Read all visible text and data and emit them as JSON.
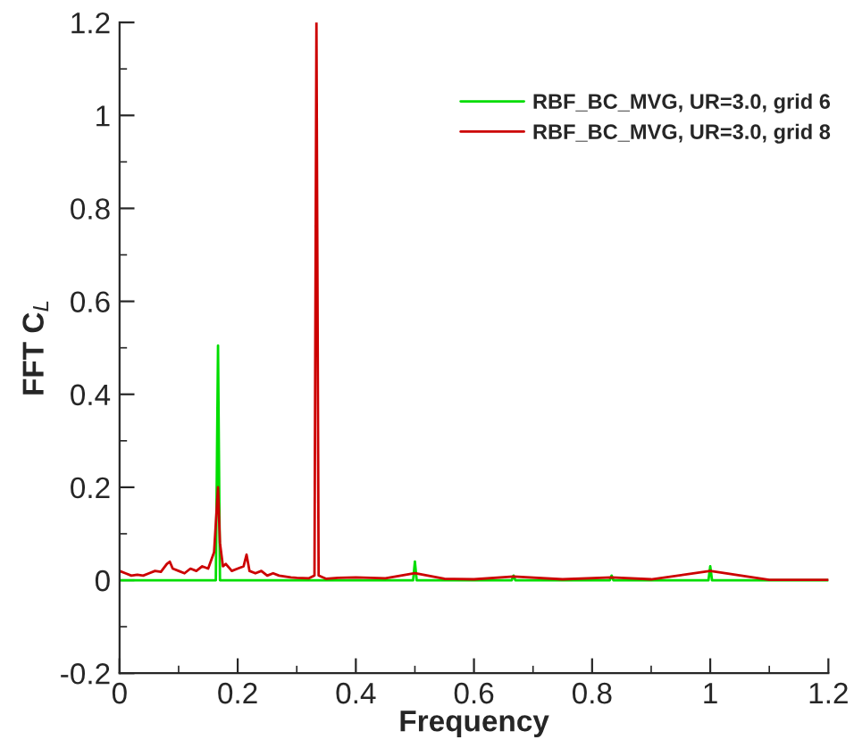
{
  "chart_data": {
    "type": "line",
    "xlabel": "Frequency",
    "ylabel": "FFT C$_{L}$",
    "xlim": [
      0,
      1.2
    ],
    "xticks": [
      0,
      0.2,
      0.4,
      0.6,
      0.8,
      1,
      1.2
    ],
    "ylim": [
      -0.2,
      1.2
    ],
    "yticks": [
      -0.2,
      0,
      0.2,
      0.4,
      0.6,
      0.8,
      1,
      1.2
    ],
    "legend": "top right",
    "grid": false,
    "marker": "none",
    "line_style": "solid",
    "series": [
      {
        "name": "RBF_BC_MVG, UR=3.0, grid 6",
        "color": "#00dd00",
        "x": [
          0,
          0.163,
          0.1667,
          0.17,
          0.33,
          0.3333,
          0.337,
          0.497,
          0.5,
          0.503,
          0.664,
          0.667,
          0.67,
          0.83,
          0.833,
          0.836,
          0.997,
          1.0,
          1.003,
          1.2
        ],
        "values": [
          0,
          0,
          0.505,
          0,
          0,
          null,
          0,
          0,
          0.04,
          0,
          0,
          0.01,
          0,
          0,
          0.01,
          0,
          0,
          0.03,
          0,
          0
        ]
      },
      {
        "name": "RBF_BC_MVG, UR=3.0, grid 8",
        "color": "#cc0000",
        "x": [
          0,
          0.01,
          0.02,
          0.03,
          0.04,
          0.05,
          0.06,
          0.07,
          0.08,
          0.085,
          0.09,
          0.1,
          0.11,
          0.12,
          0.13,
          0.14,
          0.15,
          0.16,
          0.1667,
          0.17,
          0.175,
          0.18,
          0.19,
          0.2,
          0.21,
          0.215,
          0.22,
          0.23,
          0.24,
          0.25,
          0.26,
          0.27,
          0.28,
          0.29,
          0.3,
          0.32,
          0.33,
          0.3333,
          0.337,
          0.35,
          0.37,
          0.4,
          0.45,
          0.5,
          0.55,
          0.6,
          0.667,
          0.75,
          0.833,
          0.9,
          1.0,
          1.1,
          1.2
        ],
        "values": [
          0.02,
          0.015,
          0.01,
          0.012,
          0.01,
          0.015,
          0.02,
          0.018,
          0.035,
          0.04,
          0.025,
          0.02,
          0.015,
          0.025,
          0.02,
          0.03,
          0.025,
          0.06,
          0.2,
          0.08,
          0.03,
          0.035,
          0.02,
          0.025,
          0.03,
          0.055,
          0.02,
          0.015,
          0.02,
          0.01,
          0.015,
          0.01,
          0.008,
          0.006,
          0.005,
          0.004,
          0.01,
          1.2,
          0.01,
          0.003,
          0.005,
          0.006,
          0.004,
          0.015,
          0.003,
          0.002,
          0.008,
          0.002,
          0.006,
          0.002,
          0.02,
          0.001,
          0.001
        ]
      }
    ]
  }
}
